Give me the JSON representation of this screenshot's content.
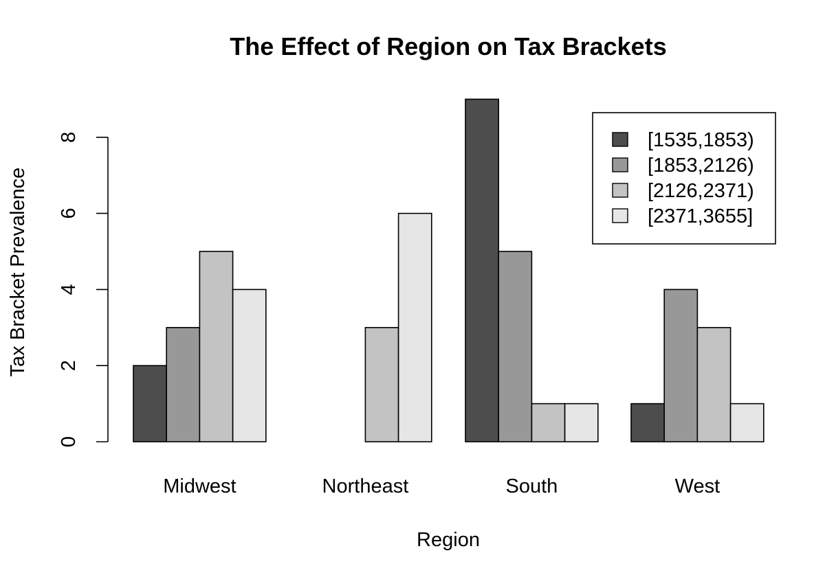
{
  "chart_data": {
    "type": "bar",
    "layout": "grouped",
    "title": "The Effect of Region on Tax Brackets",
    "xlabel": "Region",
    "ylabel": "Tax Bracket Prevalence",
    "categories": [
      "Midwest",
      "Northeast",
      "South",
      "West"
    ],
    "series": [
      {
        "name": "[1535,1853)",
        "color": "#4d4d4d",
        "values": [
          2,
          0,
          9,
          1
        ]
      },
      {
        "name": "[1853,2126)",
        "color": "#989898",
        "values": [
          3,
          0,
          5,
          4
        ]
      },
      {
        "name": "[2126,2371)",
        "color": "#c3c3c3",
        "values": [
          5,
          3,
          1,
          3
        ]
      },
      {
        "name": "[2371,3655]",
        "color": "#e6e6e6",
        "values": [
          4,
          6,
          1,
          1
        ]
      }
    ],
    "yticks": [
      0,
      2,
      4,
      6,
      8
    ],
    "ylim": [
      0,
      9
    ],
    "grid": false,
    "legend_position": "top-right"
  }
}
